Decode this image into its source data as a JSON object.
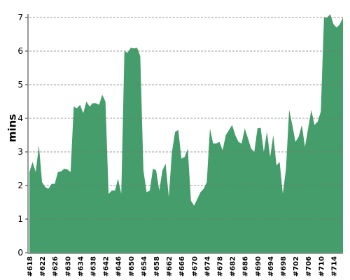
{
  "chart_data": {
    "type": "area",
    "ylabel": "mins",
    "color": "#449d6b",
    "grid": true,
    "ylim": [
      0,
      7
    ],
    "yticks": [
      0,
      1,
      2,
      3,
      4,
      5,
      6,
      7
    ],
    "categories": [
      "#618",
      null,
      null,
      null,
      "#622",
      null,
      null,
      null,
      "#626",
      null,
      null,
      null,
      "#630",
      null,
      null,
      null,
      "#634",
      null,
      null,
      null,
      "#638",
      null,
      null,
      null,
      "#642",
      null,
      null,
      null,
      "#646",
      null,
      null,
      null,
      "#650",
      null,
      null,
      null,
      "#654",
      null,
      null,
      null,
      "#658",
      null,
      null,
      null,
      "#662",
      null,
      null,
      null,
      "#666",
      null,
      null,
      null,
      "#670",
      null,
      null,
      null,
      "#674",
      null,
      null,
      null,
      "#678",
      null,
      null,
      null,
      "#682",
      null,
      null,
      null,
      "#686",
      null,
      null,
      null,
      "#690",
      null,
      null,
      null,
      "#694",
      null,
      null,
      null,
      "#698",
      null,
      null,
      null,
      "#702",
      null,
      null,
      null,
      "#706",
      null,
      null,
      null,
      "#710",
      null,
      null,
      null,
      "#714",
      null,
      null,
      null
    ],
    "values": [
      2.4,
      2.7,
      2.4,
      3.2,
      2.1,
      1.95,
      1.9,
      2.05,
      2.05,
      2.4,
      2.42,
      2.5,
      2.48,
      2.4,
      4.35,
      4.3,
      4.4,
      4.15,
      4.5,
      4.35,
      4.45,
      4.45,
      4.4,
      4.7,
      4.5,
      1.75,
      1.85,
      1.85,
      2.2,
      1.75,
      6.0,
      5.95,
      6.1,
      6.08,
      6.1,
      5.85,
      2.45,
      1.8,
      1.85,
      2.5,
      2.45,
      1.85,
      2.45,
      2.65,
      1.65,
      3.0,
      3.6,
      3.65,
      2.8,
      2.85,
      3.1,
      1.55,
      1.4,
      1.6,
      1.8,
      1.9,
      2.1,
      3.7,
      3.25,
      3.25,
      3.3,
      3.05,
      3.5,
      3.65,
      3.8,
      3.5,
      3.3,
      3.25,
      3.7,
      3.4,
      3.1,
      3.0,
      3.7,
      3.72,
      3.0,
      3.6,
      2.85,
      3.5,
      2.6,
      2.7,
      1.75,
      2.5,
      4.25,
      3.8,
      3.3,
      3.45,
      3.8,
      3.15,
      3.7,
      4.25,
      3.8,
      3.9,
      4.2,
      7.0,
      7.0,
      7.1,
      6.8,
      6.7,
      6.8,
      7.0
    ]
  }
}
